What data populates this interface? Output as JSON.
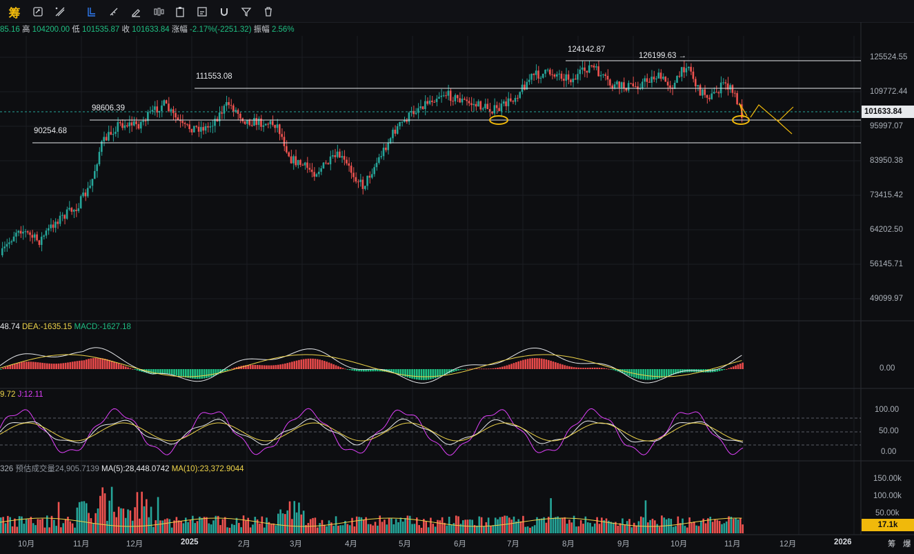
{
  "toolbar": {
    "logo": "筹",
    "icons": [
      "settings-cycle-icon",
      "draw-line-icon",
      "pointer-icon",
      "ruler-icon",
      "pen-icon",
      "candles-icon",
      "clipboard-icon",
      "edit-icon",
      "magnet-icon",
      "filter-icon",
      "trash-icon"
    ]
  },
  "ohlc": {
    "open_fragment": "85.16",
    "high_label": "高",
    "high": "104200.00",
    "low_label": "低",
    "low": "101535.87",
    "close_label": "收",
    "close": "101633.84",
    "change_label": "涨幅",
    "change": "-2.17%(-2251.32)",
    "amplitude_label": "振幅",
    "amplitude": "2.56%"
  },
  "macd_header": {
    "dif_fragment": "48.74",
    "dea": "DEA:-1635.15",
    "macd": "MACD:-1627.18"
  },
  "kdj_header": {
    "d_fragment": "9.72",
    "j": "J:12.11"
  },
  "vol_header": {
    "fragment": "326",
    "est_label": "预估成交量",
    "est": "24,905.7139",
    "ma5": "MA(5):28,448.0742",
    "ma10": "MA(10):23,372.9044"
  },
  "price_axis": [
    "125524.55",
    "109772.44",
    "95997.07",
    "83950.38",
    "73415.42",
    "64202.50",
    "56145.71",
    "49099.97"
  ],
  "current_price": "101633.84",
  "macd_axis": [
    "0.00"
  ],
  "kdj_axis": [
    "100.00",
    "50.00",
    "0.00"
  ],
  "vol_axis": [
    "150.00k",
    "100.00k",
    "50.00k"
  ],
  "current_vol": "17.1k",
  "level_labels": [
    "124142.87",
    "126199.63 →",
    "111553.08",
    "98606.39",
    "90254.68"
  ],
  "months": [
    "10月",
    "11月",
    "12月",
    "2025",
    "2月",
    "3月",
    "4月",
    "5月",
    "6月",
    "7月",
    "8月",
    "9月",
    "10月",
    "11月",
    "12月",
    "2026"
  ],
  "bottom_right": [
    "筹",
    "爆"
  ],
  "colors": {
    "up": "#26a69a",
    "down": "#ef5350",
    "accent": "#f0b90b",
    "macd_up": "#e84a4a",
    "macd_down": "#1fbf83",
    "kdj_j": "#e040fb"
  }
}
